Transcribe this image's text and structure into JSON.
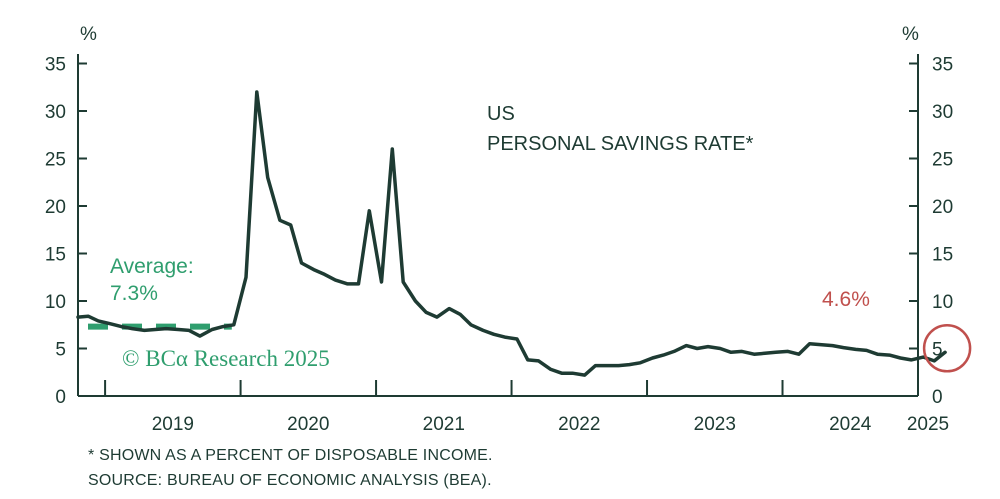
{
  "chart_data": {
    "type": "line",
    "title": "US",
    "subtitle": "PERSONAL SAVINGS RATE*",
    "ylabel_left": "%",
    "ylabel_right": "%",
    "ylim": [
      0,
      36
    ],
    "yticks": [
      0,
      5,
      10,
      15,
      20,
      25,
      30,
      35
    ],
    "xlim": [
      2018.8,
      2025.0
    ],
    "x_year_labels": [
      "2019",
      "2020",
      "2021",
      "2022",
      "2023",
      "2024",
      "2025"
    ],
    "series": [
      {
        "points": [
          [
            2018.8,
            8.3
          ],
          [
            2018.875,
            8.4
          ],
          [
            2018.95,
            7.9
          ],
          [
            2019.04,
            7.6
          ],
          [
            2019.12,
            7.3
          ],
          [
            2019.2,
            7.1
          ],
          [
            2019.29,
            6.9
          ],
          [
            2019.37,
            7.0
          ],
          [
            2019.45,
            7.1
          ],
          [
            2019.54,
            7.0
          ],
          [
            2019.62,
            6.9
          ],
          [
            2019.7,
            6.3
          ],
          [
            2019.79,
            7.0
          ],
          [
            2019.87,
            7.3
          ],
          [
            2019.95,
            7.5
          ],
          [
            2020.04,
            12.5
          ],
          [
            2020.12,
            32.0
          ],
          [
            2020.2,
            23.0
          ],
          [
            2020.29,
            18.5
          ],
          [
            2020.37,
            18.0
          ],
          [
            2020.45,
            14.0
          ],
          [
            2020.54,
            13.3
          ],
          [
            2020.62,
            12.8
          ],
          [
            2020.7,
            12.2
          ],
          [
            2020.79,
            11.8
          ],
          [
            2020.87,
            11.8
          ],
          [
            2020.95,
            19.5
          ],
          [
            2021.04,
            12.0
          ],
          [
            2021.12,
            26.0
          ],
          [
            2021.2,
            12.0
          ],
          [
            2021.29,
            10.0
          ],
          [
            2021.37,
            8.8
          ],
          [
            2021.45,
            8.3
          ],
          [
            2021.54,
            9.2
          ],
          [
            2021.62,
            8.6
          ],
          [
            2021.7,
            7.5
          ],
          [
            2021.79,
            6.9
          ],
          [
            2021.87,
            6.5
          ],
          [
            2021.95,
            6.2
          ],
          [
            2022.04,
            6.0
          ],
          [
            2022.12,
            3.8
          ],
          [
            2022.2,
            3.7
          ],
          [
            2022.29,
            2.8
          ],
          [
            2022.37,
            2.4
          ],
          [
            2022.45,
            2.4
          ],
          [
            2022.54,
            2.2
          ],
          [
            2022.62,
            3.2
          ],
          [
            2022.7,
            3.2
          ],
          [
            2022.79,
            3.2
          ],
          [
            2022.87,
            3.3
          ],
          [
            2022.95,
            3.5
          ],
          [
            2023.04,
            4.0
          ],
          [
            2023.12,
            4.3
          ],
          [
            2023.2,
            4.7
          ],
          [
            2023.29,
            5.3
          ],
          [
            2023.37,
            5.0
          ],
          [
            2023.45,
            5.2
          ],
          [
            2023.54,
            5.0
          ],
          [
            2023.62,
            4.6
          ],
          [
            2023.7,
            4.7
          ],
          [
            2023.79,
            4.4
          ],
          [
            2023.87,
            4.5
          ],
          [
            2023.95,
            4.6
          ],
          [
            2024.04,
            4.7
          ],
          [
            2024.12,
            4.4
          ],
          [
            2024.2,
            5.5
          ],
          [
            2024.29,
            5.4
          ],
          [
            2024.37,
            5.3
          ],
          [
            2024.45,
            5.1
          ],
          [
            2024.54,
            4.9
          ],
          [
            2024.62,
            4.8
          ],
          [
            2024.7,
            4.4
          ],
          [
            2024.79,
            4.3
          ],
          [
            2024.87,
            4.0
          ],
          [
            2024.95,
            3.8
          ],
          [
            2025.04,
            4.1
          ],
          [
            2025.12,
            3.7
          ],
          [
            2025.2,
            4.6
          ]
        ],
        "color": "#1e3b33"
      }
    ],
    "average": {
      "label_line1": "Average:",
      "label_line2": "7.3%",
      "value": 7.3,
      "x_range": [
        2018.8,
        2019.95
      ],
      "color": "#2f9e6e"
    },
    "last_point": {
      "label": "4.6%",
      "value": 4.6,
      "x": 2025.2,
      "color": "#c0504d"
    },
    "watermark": "© BCα Research 2025",
    "grid": false,
    "legend": "none"
  },
  "footnotes": {
    "note": "* SHOWN AS A PERCENT OF DISPOSABLE INCOME.",
    "source": "SOURCE: BUREAU OF ECONOMIC ANALYSIS (BEA)."
  }
}
